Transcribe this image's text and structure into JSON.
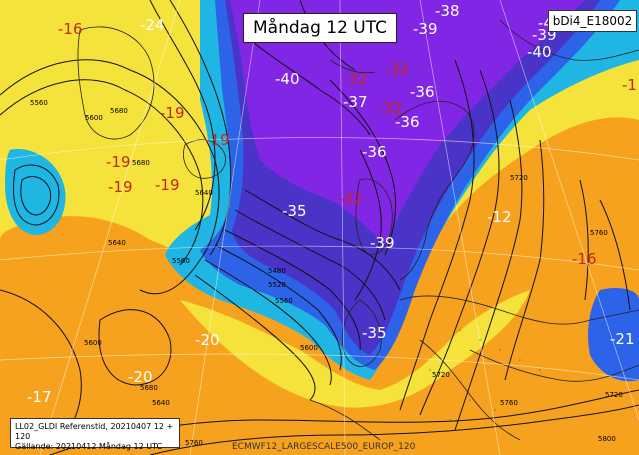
{
  "map": {
    "title": "Måndag 12 UTC",
    "product_id": "bDi4_E18002",
    "info_line1": "LL02_GLDI Referenstid, 20210407 12 + 120",
    "info_line2": "Gällande: 20210412 Måndag 12 UTC",
    "footer": "ECMWF12_LARGESCALE500_EUROP_120",
    "colors": {
      "orange": "#f6a21e",
      "yellow": "#f5e23a",
      "cyan": "#1fb6e4",
      "blue": "#2d63e8",
      "indigo": "#4a34c8",
      "purple": "#8226e6",
      "label_red": "#c2291b"
    },
    "temperature_labels": [
      {
        "text": "-16",
        "color": "red"
      },
      {
        "text": "-24",
        "color": "white"
      },
      {
        "text": "-38",
        "color": "white"
      },
      {
        "text": "-39",
        "color": "white"
      },
      {
        "text": "-39",
        "color": "white"
      },
      {
        "text": "-40",
        "color": "white"
      },
      {
        "text": "-40",
        "color": "white"
      },
      {
        "text": "-37",
        "color": "white"
      },
      {
        "text": "-36",
        "color": "white"
      },
      {
        "text": "-36",
        "color": "white"
      },
      {
        "text": "-36",
        "color": "white"
      },
      {
        "text": "-35",
        "color": "white"
      },
      {
        "text": "-39",
        "color": "white"
      },
      {
        "text": "-35",
        "color": "white"
      },
      {
        "text": "-19",
        "color": "red"
      },
      {
        "text": "-19",
        "color": "red"
      },
      {
        "text": "-19",
        "color": "red"
      },
      {
        "text": "-19",
        "color": "red"
      },
      {
        "text": "-19",
        "color": "red"
      },
      {
        "text": "-32",
        "color": "red"
      },
      {
        "text": "-32",
        "color": "red"
      },
      {
        "text": "-32",
        "color": "red"
      },
      {
        "text": "-32",
        "color": "red"
      },
      {
        "text": "-16",
        "color": "red"
      },
      {
        "text": "-20",
        "color": "white"
      },
      {
        "text": "-20",
        "color": "white"
      },
      {
        "text": "-17",
        "color": "white"
      },
      {
        "text": "-21",
        "color": "white"
      },
      {
        "text": "-12",
        "color": "white"
      },
      {
        "text": "-1",
        "color": "red"
      },
      {
        "text": "-40",
        "color": "white"
      }
    ],
    "contour_labels": [
      "5560",
      "5600",
      "5640",
      "5680",
      "5480",
      "5520",
      "5560",
      "5600",
      "5640",
      "5680",
      "5720",
      "5760",
      "5720",
      "5760",
      "5800",
      "5720",
      "5760",
      "5600",
      "5560",
      "5640",
      "5680"
    ]
  }
}
